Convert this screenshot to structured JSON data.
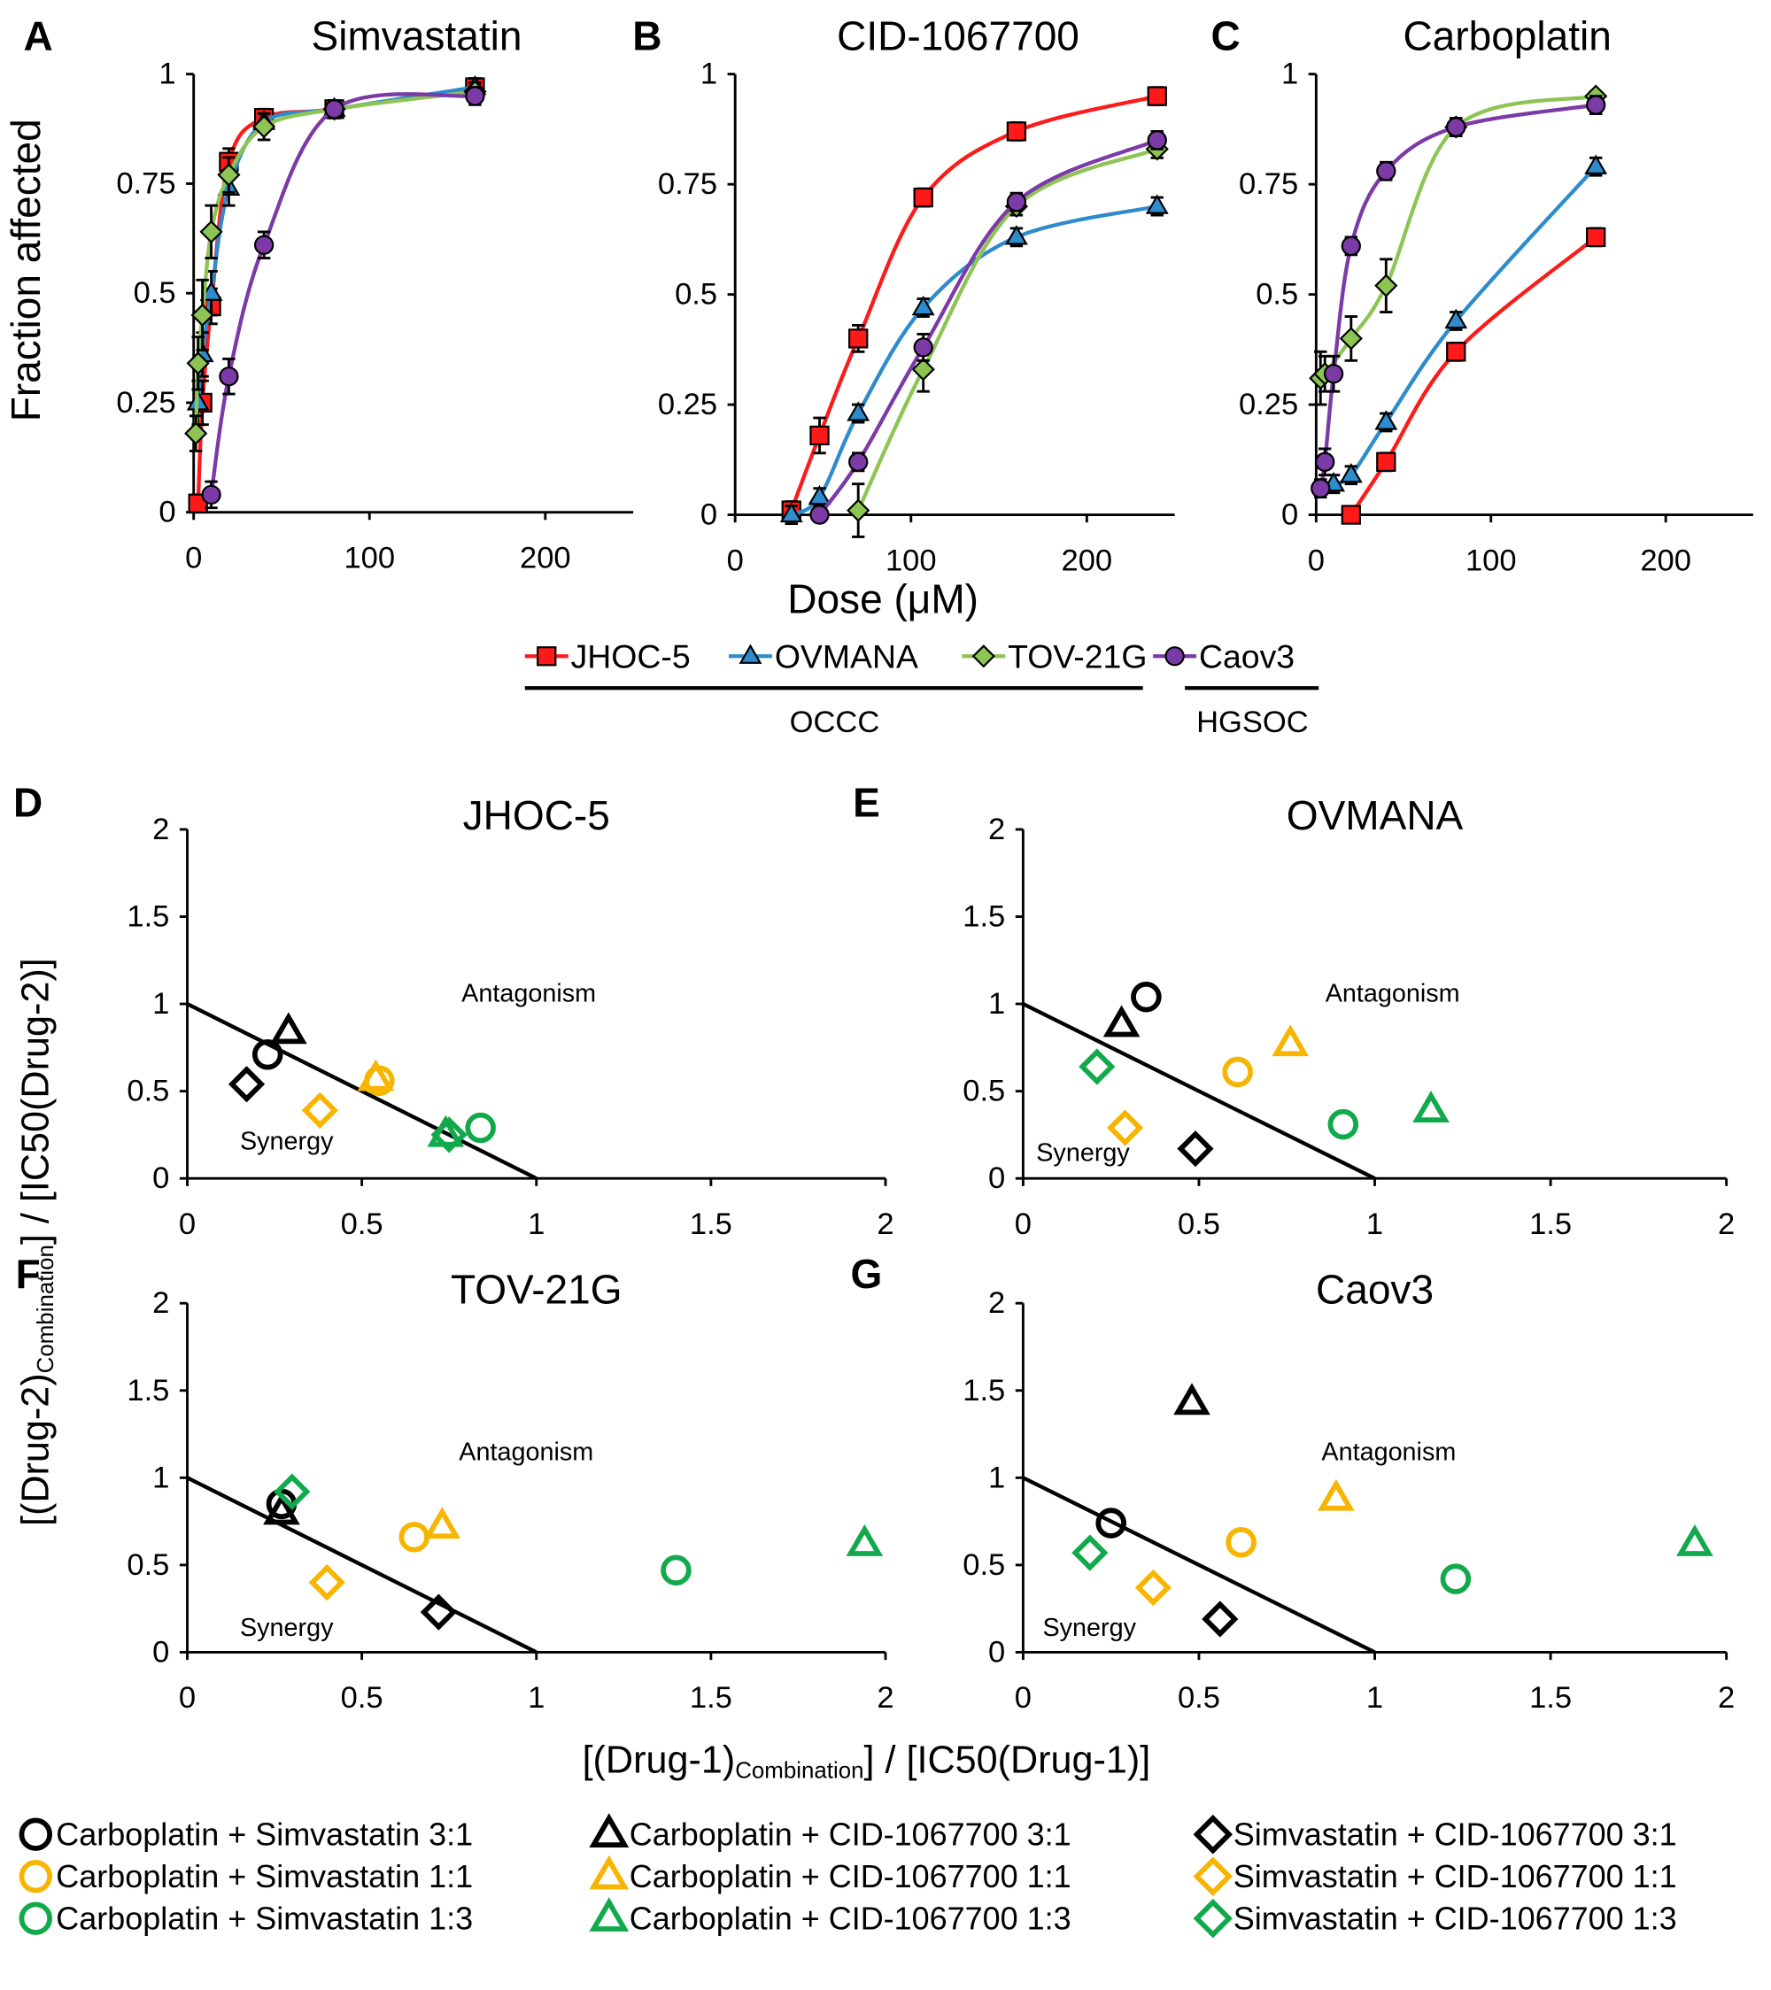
{
  "chart_data": [
    {
      "type": "line",
      "panel": "A",
      "title": "Simvastatin",
      "xlim": [
        0,
        250
      ],
      "xticks": [
        0,
        100,
        200
      ],
      "ylim": [
        0,
        1
      ],
      "yticks": [
        0,
        0.25,
        0.5,
        0.75,
        1
      ],
      "series": [
        {
          "name": "JHOC-5",
          "color": "#ff1a1a",
          "marker": "square",
          "x": [
            2.5,
            5,
            10,
            20,
            40,
            80,
            160
          ],
          "values": [
            0.02,
            0.25,
            0.47,
            0.8,
            0.9,
            0.92,
            0.97
          ],
          "errors": [
            0.02,
            0.05,
            0.04,
            0.03,
            0.02,
            0.02,
            0.02
          ]
        },
        {
          "name": "OVMANA",
          "color": "#2e8bcc",
          "marker": "triangle",
          "x": [
            2.5,
            5,
            10,
            20,
            40,
            80,
            160
          ],
          "values": [
            0.25,
            0.36,
            0.5,
            0.74,
            0.89,
            0.92,
            0.97
          ],
          "errors": [
            0.05,
            0.05,
            0.05,
            0.04,
            0.02,
            0.02,
            0.02
          ]
        },
        {
          "name": "TOV-21G",
          "color": "#8dc454",
          "marker": "diamond",
          "x": [
            1.25,
            2.5,
            5,
            10,
            20,
            40,
            80,
            160
          ],
          "values": [
            0.18,
            0.34,
            0.45,
            0.64,
            0.77,
            0.88,
            0.92,
            0.96
          ],
          "errors": [
            0.04,
            0.06,
            0.08,
            0.06,
            0.04,
            0.03,
            0.02,
            0.02
          ]
        },
        {
          "name": "Caov3",
          "color": "#7b3aa6",
          "marker": "circle",
          "x": [
            10,
            20,
            40,
            80,
            160
          ],
          "values": [
            0.04,
            0.31,
            0.61,
            0.92,
            0.95
          ],
          "errors": [
            0.03,
            0.04,
            0.03,
            0.02,
            0.02
          ]
        }
      ]
    },
    {
      "type": "line",
      "panel": "B",
      "title": "CID-1067700",
      "xlim": [
        0,
        250
      ],
      "xticks": [
        0,
        100,
        200
      ],
      "ylim": [
        0,
        1
      ],
      "yticks": [
        0,
        0.25,
        0.5,
        0.75,
        1
      ],
      "series": [
        {
          "name": "JHOC-5",
          "color": "#ff1a1a",
          "marker": "square",
          "x": [
            32,
            48,
            70,
            107,
            160,
            240
          ],
          "values": [
            0.01,
            0.18,
            0.4,
            0.72,
            0.87,
            0.95
          ],
          "errors": [
            0.02,
            0.04,
            0.03,
            0.02,
            0.02,
            0.02
          ]
        },
        {
          "name": "OVMANA",
          "color": "#2e8bcc",
          "marker": "triangle",
          "x": [
            32,
            48,
            70,
            107,
            160,
            240
          ],
          "values": [
            0,
            0.04,
            0.23,
            0.47,
            0.63,
            0.7
          ],
          "errors": [
            0.02,
            0.02,
            0.02,
            0.02,
            0.02,
            0.02
          ]
        },
        {
          "name": "TOV-21G",
          "color": "#8dc454",
          "marker": "diamond",
          "x": [
            70,
            107,
            160,
            240
          ],
          "values": [
            0.01,
            0.33,
            0.7,
            0.83
          ],
          "errors": [
            0.06,
            0.05,
            0.02,
            0.02
          ]
        },
        {
          "name": "Caov3",
          "color": "#7b3aa6",
          "marker": "circle",
          "x": [
            48,
            70,
            107,
            160,
            240
          ],
          "values": [
            0,
            0.12,
            0.38,
            0.71,
            0.85
          ],
          "errors": [
            0.01,
            0.02,
            0.03,
            0.02,
            0.02
          ]
        }
      ]
    },
    {
      "type": "line",
      "panel": "C",
      "title": "Carboplatin",
      "xlim": [
        0,
        250
      ],
      "xticks": [
        0,
        100,
        200
      ],
      "ylim": [
        0,
        1
      ],
      "yticks": [
        0,
        0.25,
        0.5,
        0.75,
        1
      ],
      "series": [
        {
          "name": "JHOC-5",
          "color": "#ff1a1a",
          "marker": "square",
          "x": [
            20,
            40,
            80,
            160
          ],
          "values": [
            0,
            0.12,
            0.37,
            0.63
          ],
          "errors": [
            0.01,
            0.02,
            0.02,
            0.02
          ]
        },
        {
          "name": "OVMANA",
          "color": "#2e8bcc",
          "marker": "triangle",
          "x": [
            10,
            20,
            40,
            80,
            160
          ],
          "values": [
            0.07,
            0.09,
            0.21,
            0.44,
            0.79
          ],
          "errors": [
            0.02,
            0.02,
            0.02,
            0.02,
            0.02
          ]
        },
        {
          "name": "TOV-21G",
          "color": "#8dc454",
          "marker": "diamond",
          "x": [
            2.5,
            5,
            20,
            40,
            80,
            160
          ],
          "values": [
            0.31,
            0.32,
            0.4,
            0.52,
            0.88,
            0.95
          ],
          "errors": [
            0.06,
            0.04,
            0.05,
            0.06,
            0.02,
            0.01
          ]
        },
        {
          "name": "Caov3",
          "color": "#7b3aa6",
          "marker": "circle",
          "x": [
            2.5,
            5,
            10,
            20,
            40,
            80,
            160
          ],
          "values": [
            0.06,
            0.12,
            0.32,
            0.61,
            0.78,
            0.88,
            0.93
          ],
          "errors": [
            0.02,
            0.03,
            0.04,
            0.02,
            0.02,
            0.02,
            0.02
          ]
        }
      ]
    },
    {
      "type": "scatter",
      "panel": "D",
      "title": "JHOC-5",
      "xlim": [
        0,
        2
      ],
      "xticks": [
        0,
        0.5,
        1,
        1.5,
        2
      ],
      "ylim": [
        0,
        2
      ],
      "yticks": [
        0,
        0.5,
        1,
        1.5,
        2
      ],
      "annotations": [
        "Antagonism",
        "Synergy"
      ],
      "reference_line": {
        "x": [
          0,
          1
        ],
        "y": [
          1,
          0
        ]
      },
      "series": [
        {
          "name": "Carboplatin + Simvastatin 3:1",
          "color": "#000000",
          "marker": "circle",
          "x": [
            0.23
          ],
          "values": [
            0.71
          ]
        },
        {
          "name": "Carboplatin + Simvastatin 1:1",
          "color": "#f7b500",
          "marker": "circle",
          "x": [
            0.55
          ],
          "values": [
            0.56
          ]
        },
        {
          "name": "Carboplatin + Simvastatin 1:3",
          "color": "#12a94c",
          "marker": "circle",
          "x": [
            0.84
          ],
          "values": [
            0.29
          ]
        },
        {
          "name": "Carboplatin + CID-1067700 3:1",
          "color": "#000000",
          "marker": "triangle",
          "x": [
            0.29
          ],
          "values": [
            0.84
          ]
        },
        {
          "name": "Carboplatin + CID-1067700 1:1",
          "color": "#f7b500",
          "marker": "triangle",
          "x": [
            0.54
          ],
          "values": [
            0.57
          ]
        },
        {
          "name": "Carboplatin + CID-1067700 1:3",
          "color": "#12a94c",
          "marker": "triangle",
          "x": [
            0.74
          ],
          "values": [
            0.25
          ]
        },
        {
          "name": "Simvastatin + CID-1067700 3:1",
          "color": "#000000",
          "marker": "diamond",
          "x": [
            0.17
          ],
          "values": [
            0.54
          ]
        },
        {
          "name": "Simvastatin + CID-1067700 1:1",
          "color": "#f7b500",
          "marker": "diamond",
          "x": [
            0.38
          ],
          "values": [
            0.39
          ]
        },
        {
          "name": "Simvastatin + CID-1067700 1:3",
          "color": "#12a94c",
          "marker": "diamond",
          "x": [
            0.75
          ],
          "values": [
            0.25
          ]
        }
      ]
    },
    {
      "type": "scatter",
      "panel": "E",
      "title": "OVMANA",
      "xlim": [
        0,
        2
      ],
      "xticks": [
        0,
        0.5,
        1,
        1.5,
        2
      ],
      "ylim": [
        0,
        2
      ],
      "yticks": [
        0,
        0.5,
        1,
        1.5,
        2
      ],
      "annotations": [
        "Antagonism",
        "Synergy"
      ],
      "reference_line": {
        "x": [
          0,
          1
        ],
        "y": [
          1,
          0
        ]
      },
      "series": [
        {
          "name": "Carboplatin + Simvastatin 3:1",
          "color": "#000000",
          "marker": "circle",
          "x": [
            0.35
          ],
          "values": [
            1.04
          ]
        },
        {
          "name": "Carboplatin + Simvastatin 1:1",
          "color": "#f7b500",
          "marker": "circle",
          "x": [
            0.61
          ],
          "values": [
            0.61
          ]
        },
        {
          "name": "Carboplatin + Simvastatin 1:3",
          "color": "#12a94c",
          "marker": "circle",
          "x": [
            0.91
          ],
          "values": [
            0.31
          ]
        },
        {
          "name": "Carboplatin + CID-1067700 3:1",
          "color": "#000000",
          "marker": "triangle",
          "x": [
            0.28
          ],
          "values": [
            0.88
          ]
        },
        {
          "name": "Carboplatin + CID-1067700 1:1",
          "color": "#f7b500",
          "marker": "triangle",
          "x": [
            0.76
          ],
          "values": [
            0.77
          ]
        },
        {
          "name": "Carboplatin + CID-1067700 1:3",
          "color": "#12a94c",
          "marker": "triangle",
          "x": [
            1.16
          ],
          "values": [
            0.39
          ]
        },
        {
          "name": "Simvastatin + CID-1067700 3:1",
          "color": "#000000",
          "marker": "diamond",
          "x": [
            0.49
          ],
          "values": [
            0.17
          ]
        },
        {
          "name": "Simvastatin + CID-1067700 1:1",
          "color": "#f7b500",
          "marker": "diamond",
          "x": [
            0.29
          ],
          "values": [
            0.29
          ]
        },
        {
          "name": "Simvastatin + CID-1067700 1:3",
          "color": "#12a94c",
          "marker": "diamond",
          "x": [
            0.21
          ],
          "values": [
            0.64
          ]
        }
      ]
    },
    {
      "type": "scatter",
      "panel": "F",
      "title": "TOV-21G",
      "xlim": [
        0,
        2
      ],
      "xticks": [
        0,
        0.5,
        1,
        1.5,
        2
      ],
      "ylim": [
        0,
        2
      ],
      "yticks": [
        0,
        0.5,
        1,
        1.5,
        2
      ],
      "annotations": [
        "Antagonism",
        "Synergy"
      ],
      "reference_line": {
        "x": [
          0,
          1
        ],
        "y": [
          1,
          0
        ]
      },
      "series": [
        {
          "name": "Carboplatin + Simvastatin 3:1",
          "color": "#000000",
          "marker": "circle",
          "x": [
            0.27
          ],
          "values": [
            0.85
          ]
        },
        {
          "name": "Carboplatin + Simvastatin 1:1",
          "color": "#f7b500",
          "marker": "circle",
          "x": [
            0.65
          ],
          "values": [
            0.66
          ]
        },
        {
          "name": "Carboplatin + Simvastatin 1:3",
          "color": "#12a94c",
          "marker": "circle",
          "x": [
            1.4
          ],
          "values": [
            0.47
          ]
        },
        {
          "name": "Carboplatin + CID-1067700 3:1",
          "color": "#000000",
          "marker": "triangle",
          "x": [
            0.27
          ],
          "values": [
            0.8
          ]
        },
        {
          "name": "Carboplatin + CID-1067700 1:1",
          "color": "#f7b500",
          "marker": "triangle",
          "x": [
            0.73
          ],
          "values": [
            0.72
          ]
        },
        {
          "name": "Carboplatin + CID-1067700 1:3",
          "color": "#12a94c",
          "marker": "triangle",
          "x": [
            1.94
          ],
          "values": [
            0.62
          ]
        },
        {
          "name": "Simvastatin + CID-1067700 3:1",
          "color": "#000000",
          "marker": "diamond",
          "x": [
            0.72
          ],
          "values": [
            0.23
          ]
        },
        {
          "name": "Simvastatin + CID-1067700 1:1",
          "color": "#f7b500",
          "marker": "diamond",
          "x": [
            0.4
          ],
          "values": [
            0.4
          ]
        },
        {
          "name": "Simvastatin + CID-1067700 1:3",
          "color": "#12a94c",
          "marker": "diamond",
          "x": [
            0.3
          ],
          "values": [
            0.92
          ]
        }
      ]
    },
    {
      "type": "scatter",
      "panel": "G",
      "title": "Caov3",
      "xlim": [
        0,
        2
      ],
      "xticks": [
        0,
        0.5,
        1,
        1.5,
        2
      ],
      "ylim": [
        0,
        2
      ],
      "yticks": [
        0,
        0.5,
        1,
        1.5,
        2
      ],
      "annotations": [
        "Antagonism",
        "Synergy"
      ],
      "reference_line": {
        "x": [
          0,
          1
        ],
        "y": [
          1,
          0
        ]
      },
      "series": [
        {
          "name": "Carboplatin + Simvastatin 3:1",
          "color": "#000000",
          "marker": "circle",
          "x": [
            0.25
          ],
          "values": [
            0.74
          ]
        },
        {
          "name": "Carboplatin + Simvastatin 1:1",
          "color": "#f7b500",
          "marker": "circle",
          "x": [
            0.62
          ],
          "values": [
            0.63
          ]
        },
        {
          "name": "Carboplatin + Simvastatin 1:3",
          "color": "#12a94c",
          "marker": "circle",
          "x": [
            1.23
          ],
          "values": [
            0.42
          ]
        },
        {
          "name": "Carboplatin + CID-1067700 3:1",
          "color": "#000000",
          "marker": "triangle",
          "x": [
            0.48
          ],
          "values": [
            1.43
          ]
        },
        {
          "name": "Carboplatin + CID-1067700 1:1",
          "color": "#f7b500",
          "marker": "triangle",
          "x": [
            0.89
          ],
          "values": [
            0.88
          ]
        },
        {
          "name": "Carboplatin + CID-1067700 1:3",
          "color": "#12a94c",
          "marker": "triangle",
          "x": [
            1.91
          ],
          "values": [
            0.62
          ]
        },
        {
          "name": "Simvastatin + CID-1067700 3:1",
          "color": "#000000",
          "marker": "diamond",
          "x": [
            0.56
          ],
          "values": [
            0.19
          ]
        },
        {
          "name": "Simvastatin + CID-1067700 1:1",
          "color": "#f7b500",
          "marker": "diamond",
          "x": [
            0.37
          ],
          "values": [
            0.37
          ]
        },
        {
          "name": "Simvastatin + CID-1067700 1:3",
          "color": "#12a94c",
          "marker": "diamond",
          "x": [
            0.19
          ],
          "values": [
            0.57
          ]
        }
      ]
    }
  ],
  "dose_response_axes": {
    "y_label": "Fraction affected",
    "x_label": "Dose (μM)"
  },
  "legend_groups": [
    {
      "label": "OCCC"
    },
    {
      "label": "HGSOC"
    }
  ],
  "isobologram_axes": {
    "x_label": {
      "pre": "[(Drug-1)",
      "sub": "Combination",
      "post": "] / [IC50(Drug-1)]"
    },
    "y_label": {
      "pre": "[(Drug-2)",
      "sub": "Combination",
      "post": "] / [IC50(Drug-2)]"
    }
  }
}
